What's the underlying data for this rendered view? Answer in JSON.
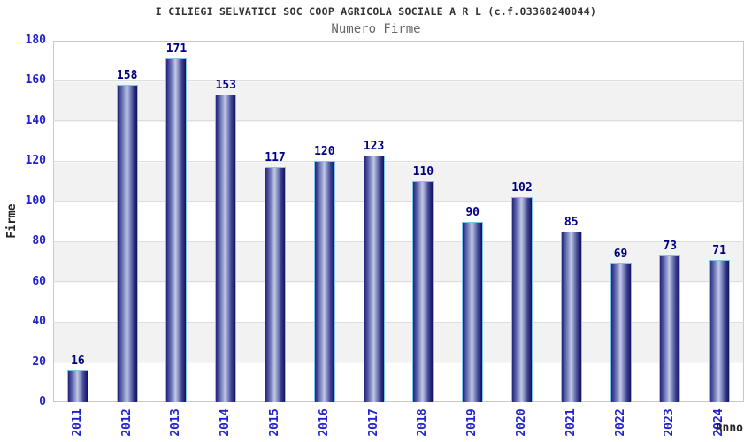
{
  "chart_data": {
    "type": "bar",
    "title": "I CILIEGI SELVATICI SOC COOP AGRICOLA SOCIALE A R L (c.f.03368240044)",
    "subtitle": "Numero Firme",
    "xlabel": "Anno",
    "ylabel": "Firme",
    "categories": [
      "2011",
      "2012",
      "2013",
      "2014",
      "2015",
      "2016",
      "2017",
      "2018",
      "2019",
      "2020",
      "2021",
      "2022",
      "2023",
      "2024"
    ],
    "values": [
      16,
      158,
      171,
      153,
      117,
      120,
      123,
      110,
      90,
      102,
      85,
      69,
      73,
      71
    ],
    "ylim": [
      0,
      180
    ],
    "ytick_step": 20,
    "grid": true,
    "legend_position": "none",
    "colors": {
      "bar_dark": "#12125e",
      "bar_light": "#c4cae6",
      "bar_cap": "#82c4e9",
      "tick_label": "#2222cc",
      "value_label": "#000082",
      "band_gray": "#f2f2f2",
      "gridline": "#dddddd",
      "title": "#333333",
      "subtitle": "#666666"
    }
  }
}
